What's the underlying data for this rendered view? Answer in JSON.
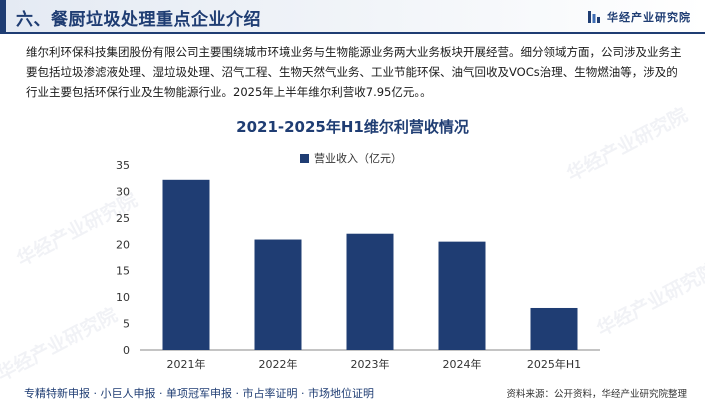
{
  "header": {
    "title": "六、餐厨垃圾处理重点企业介绍",
    "brand": "华经产业研究院"
  },
  "intro": "维尔利环保科技集团股份有限公司主要围绕城市环境业务与生物能源业务两大业务板块开展经营。细分领域方面，公司涉及业务主要包括垃圾渗滤液处理、湿垃圾处理、沼气工程、生物天然气业务、工业节能环保、油气回收及VOCs治理、生物燃油等，涉及的行业主要包括环保行业及生物能源行业。2025年上半年维尔利营收7.95亿元。。",
  "chart_data": {
    "type": "bar",
    "title": "2021-2025年H1维尔利营收情况",
    "categories": [
      "2021年",
      "2022年",
      "2023年",
      "2024年",
      "2025年H1"
    ],
    "series": [
      {
        "name": "营业收入（亿元）",
        "values": [
          32.2,
          20.9,
          22.0,
          20.5,
          7.95
        ]
      }
    ],
    "ylim": [
      0,
      35
    ],
    "yticks": [
      "0",
      "5",
      "10",
      "15",
      "20",
      "25",
      "30",
      "35"
    ],
    "legend_position": "top",
    "grid": false,
    "color": "#1f3d73"
  },
  "footer": {
    "services": "专精特新申报 · 小巨人申报 · 单项冠军申报 · 市占率证明 · 市场地位证明",
    "source": "资料来源：公开资料，华经产业研究院整理"
  },
  "watermark": "华经产业研究院"
}
